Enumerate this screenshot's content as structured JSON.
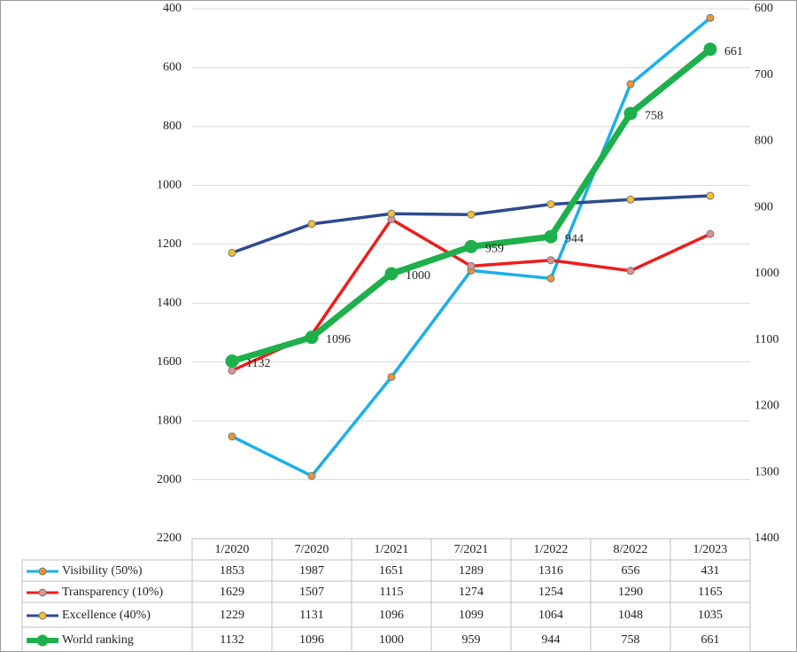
{
  "chart_data": {
    "type": "line",
    "categories": [
      "1/2020",
      "7/2020",
      "1/2021",
      "7/2021",
      "1/2022",
      "8/2022",
      "1/2023"
    ],
    "series": [
      {
        "name": "Visibility (50%)",
        "color": "#1ab0e8",
        "marker_color": "#e8963a",
        "values": [
          1853,
          1987,
          1651,
          1289,
          1316,
          656,
          431
        ]
      },
      {
        "name": "Transparency (10%)",
        "color": "#ee1c1c",
        "marker_color": "#d89494",
        "values": [
          1629,
          1507,
          1115,
          1274,
          1254,
          1290,
          1165
        ]
      },
      {
        "name": "Excellence (40%)",
        "color": "#2e4a8e",
        "marker_color": "#f2c12e",
        "values": [
          1229,
          1131,
          1096,
          1099,
          1064,
          1048,
          1035
        ]
      },
      {
        "name": "World ranking",
        "color": "#1db04b",
        "marker_color": "#1db04b",
        "axis": "y2",
        "data_labels": true,
        "values": [
          1132,
          1096,
          1000,
          959,
          944,
          758,
          661
        ]
      }
    ],
    "ylim": [
      2200,
      400
    ],
    "yticks": [
      2200,
      2000,
      1800,
      1600,
      1400,
      1200,
      1000,
      800,
      600,
      400
    ],
    "y2lim": [
      1400,
      600
    ],
    "y2ticks": [
      1400,
      1300,
      1200,
      1100,
      1000,
      900,
      800,
      700,
      600
    ],
    "grid": true,
    "data_table": true
  }
}
